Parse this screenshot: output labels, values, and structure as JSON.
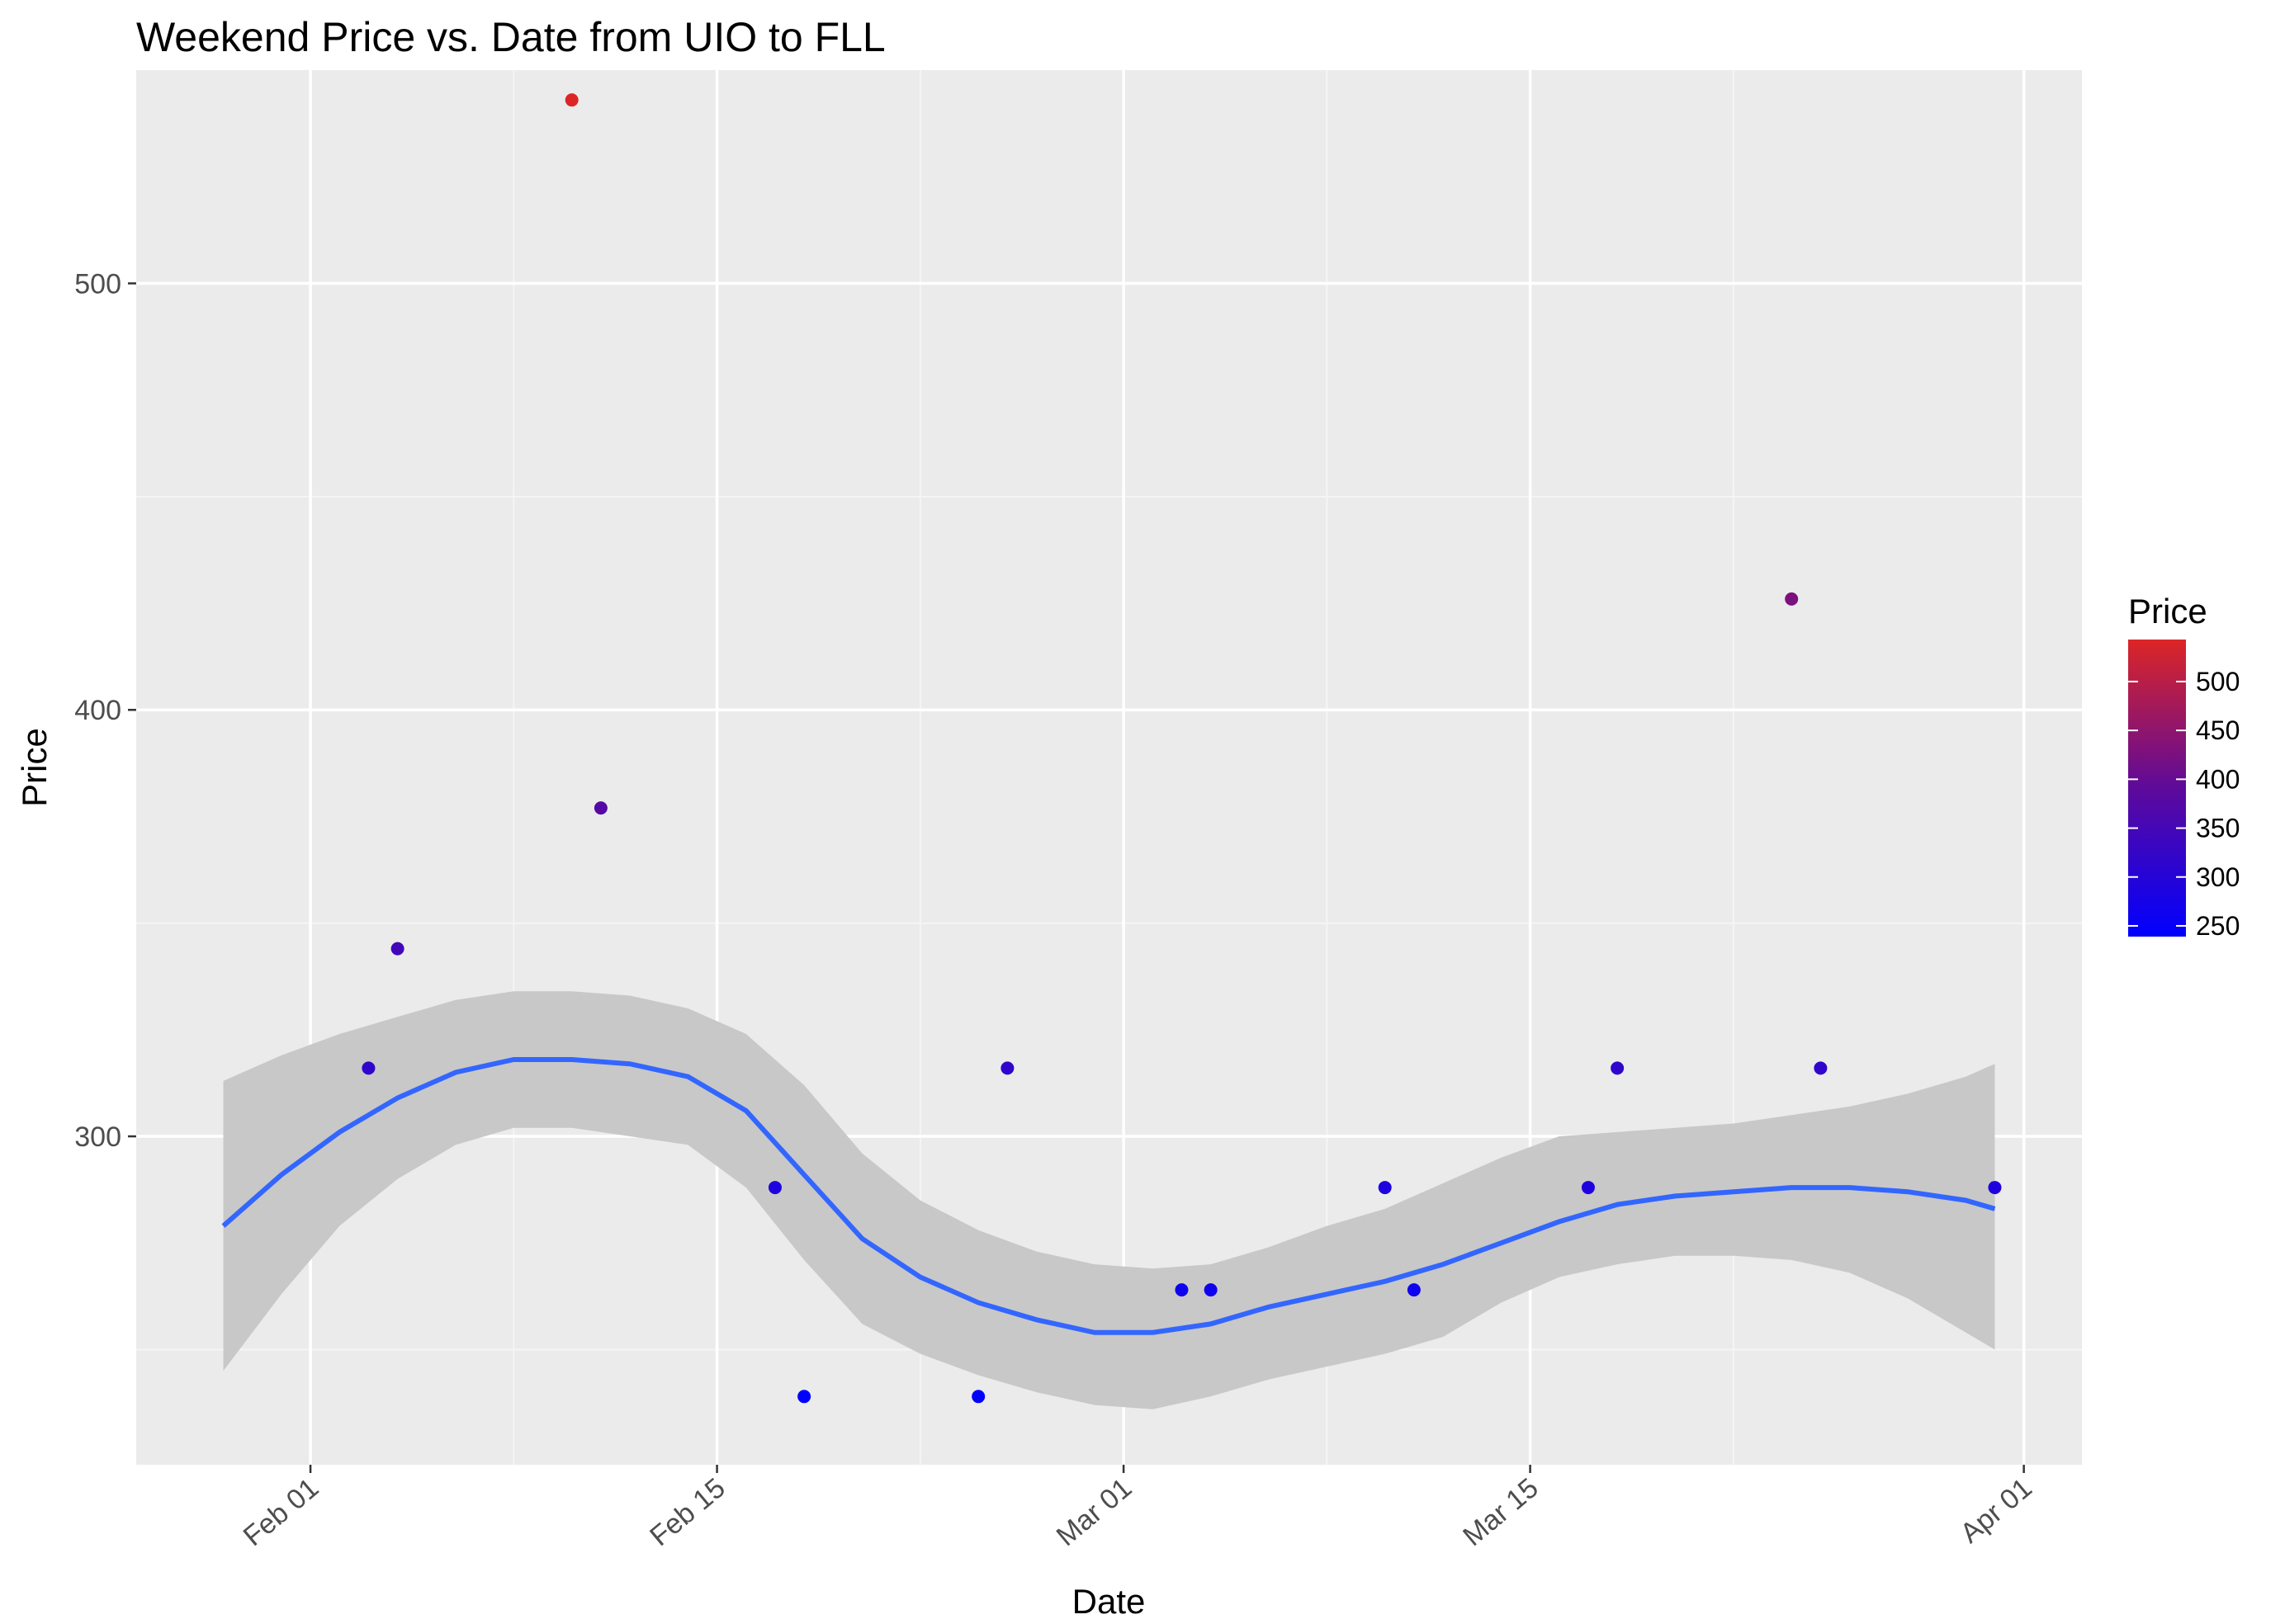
{
  "chart_data": {
    "type": "scatter",
    "title": "Weekend Price vs. Date from UIO to FLL",
    "xlabel": "Date",
    "ylabel": "Price",
    "xlim": [
      "2025-01-26",
      "2025-04-03"
    ],
    "ylim": [
      223,
      550
    ],
    "x_ticks": [
      {
        "date": "2025-02-01",
        "label": "Feb 01"
      },
      {
        "date": "2025-02-15",
        "label": "Feb 15"
      },
      {
        "date": "2025-03-01",
        "label": "Mar 01"
      },
      {
        "date": "2025-03-15",
        "label": "Mar 15"
      },
      {
        "date": "2025-04-01",
        "label": "Apr 01"
      }
    ],
    "x_minor_ticks": [
      "2025-02-08",
      "2025-02-22",
      "2025-03-08",
      "2025-03-22"
    ],
    "y_ticks": [
      300,
      400,
      500
    ],
    "y_minor_ticks": [
      250,
      350,
      450
    ],
    "grid": true,
    "background": "#ebebeb",
    "points": [
      {
        "x": "2025-02-03",
        "y": 316
      },
      {
        "x": "2025-02-04",
        "y": 344
      },
      {
        "x": "2025-02-10",
        "y": 543
      },
      {
        "x": "2025-02-11",
        "y": 377
      },
      {
        "x": "2025-02-17",
        "y": 288
      },
      {
        "x": "2025-02-18",
        "y": 239
      },
      {
        "x": "2025-02-24",
        "y": 239
      },
      {
        "x": "2025-02-25",
        "y": 316
      },
      {
        "x": "2025-03-03",
        "y": 264
      },
      {
        "x": "2025-03-04",
        "y": 264
      },
      {
        "x": "2025-03-10",
        "y": 288
      },
      {
        "x": "2025-03-11",
        "y": 264
      },
      {
        "x": "2025-03-17",
        "y": 288
      },
      {
        "x": "2025-03-18",
        "y": 316
      },
      {
        "x": "2025-03-24",
        "y": 426
      },
      {
        "x": "2025-03-25",
        "y": 316
      },
      {
        "x": "2025-03-31",
        "y": 288
      }
    ],
    "smooth": {
      "color": "#3366ff",
      "band_color": "#c8c8c8",
      "x": [
        "2025-01-29",
        "2025-01-31",
        "2025-02-02",
        "2025-02-04",
        "2025-02-06",
        "2025-02-08",
        "2025-02-10",
        "2025-02-12",
        "2025-02-14",
        "2025-02-16",
        "2025-02-18",
        "2025-02-20",
        "2025-02-22",
        "2025-02-24",
        "2025-02-26",
        "2025-02-28",
        "2025-03-02",
        "2025-03-04",
        "2025-03-06",
        "2025-03-08",
        "2025-03-10",
        "2025-03-12",
        "2025-03-14",
        "2025-03-16",
        "2025-03-18",
        "2025-03-20",
        "2025-03-22",
        "2025-03-24",
        "2025-03-26",
        "2025-03-28",
        "2025-03-30",
        "2025-03-31"
      ],
      "y": [
        279,
        291,
        301,
        309,
        315,
        318,
        318,
        317,
        314,
        306,
        291,
        276,
        267,
        261,
        257,
        254,
        254,
        256,
        260,
        263,
        266,
        270,
        275,
        280,
        284,
        286,
        287,
        288,
        288,
        287,
        285,
        283
      ],
      "upper": [
        313,
        319,
        324,
        328,
        332,
        334,
        334,
        333,
        330,
        324,
        312,
        296,
        285,
        278,
        273,
        270,
        269,
        270,
        274,
        279,
        283,
        289,
        295,
        300,
        301,
        302,
        303,
        305,
        307,
        310,
        314,
        317
      ],
      "lower": [
        245,
        263,
        279,
        290,
        298,
        302,
        302,
        300,
        298,
        288,
        271,
        256,
        249,
        244,
        240,
        237,
        236,
        239,
        243,
        246,
        249,
        253,
        261,
        267,
        270,
        272,
        272,
        271,
        268,
        262,
        254,
        250
      ]
    },
    "legend": {
      "title": "Price",
      "placement": "right",
      "min": 239,
      "max": 543,
      "low_color": "#0000ff",
      "high_color": "#dc2626",
      "breaks": [
        250,
        300,
        350,
        400,
        450,
        500
      ]
    }
  }
}
